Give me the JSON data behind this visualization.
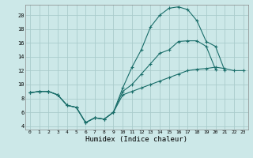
{
  "xlabel": "Humidex (Indice chaleur)",
  "bg_color": "#cce8e8",
  "grid_color": "#aacccc",
  "line_color": "#1a6e6a",
  "xlim": [
    -0.5,
    23.5
  ],
  "ylim": [
    3.5,
    21.5
  ],
  "yticks": [
    4,
    6,
    8,
    10,
    12,
    14,
    16,
    18,
    20
  ],
  "xticks": [
    0,
    1,
    2,
    3,
    4,
    5,
    6,
    7,
    8,
    9,
    10,
    11,
    12,
    13,
    14,
    15,
    16,
    17,
    18,
    19,
    20,
    21,
    22,
    23
  ],
  "line1_x": [
    0,
    1,
    2,
    3,
    4,
    5,
    6,
    7,
    8,
    9,
    10,
    11,
    12,
    13,
    14,
    15,
    16,
    17,
    18,
    19,
    20,
    21,
    22,
    23
  ],
  "line1_y": [
    8.8,
    9.0,
    9.0,
    8.5,
    7.0,
    6.7,
    4.5,
    5.2,
    5.0,
    6.0,
    9.5,
    12.5,
    15.0,
    18.3,
    20.0,
    21.0,
    21.2,
    20.8,
    19.2,
    16.2,
    15.5,
    12.0,
    null,
    null
  ],
  "line2_x": [
    0,
    1,
    2,
    3,
    4,
    5,
    6,
    7,
    8,
    9,
    10,
    11,
    12,
    13,
    14,
    15,
    16,
    17,
    18,
    19,
    20,
    21,
    22,
    23
  ],
  "line2_y": [
    8.8,
    9.0,
    9.0,
    8.5,
    7.0,
    6.7,
    4.5,
    5.2,
    5.0,
    6.0,
    9.0,
    10.0,
    11.5,
    13.0,
    14.5,
    15.0,
    16.2,
    16.3,
    16.3,
    15.5,
    12.2,
    null,
    null,
    null
  ],
  "line3_x": [
    0,
    1,
    2,
    3,
    4,
    5,
    6,
    7,
    8,
    9,
    10,
    11,
    12,
    13,
    14,
    15,
    16,
    17,
    18,
    19,
    20,
    21,
    22,
    23
  ],
  "line3_y": [
    8.8,
    9.0,
    9.0,
    8.5,
    7.0,
    6.7,
    4.5,
    5.2,
    5.0,
    6.0,
    8.5,
    9.0,
    9.5,
    10.0,
    10.5,
    11.0,
    11.5,
    12.0,
    12.2,
    12.3,
    12.5,
    12.3,
    12.0,
    12.0
  ]
}
